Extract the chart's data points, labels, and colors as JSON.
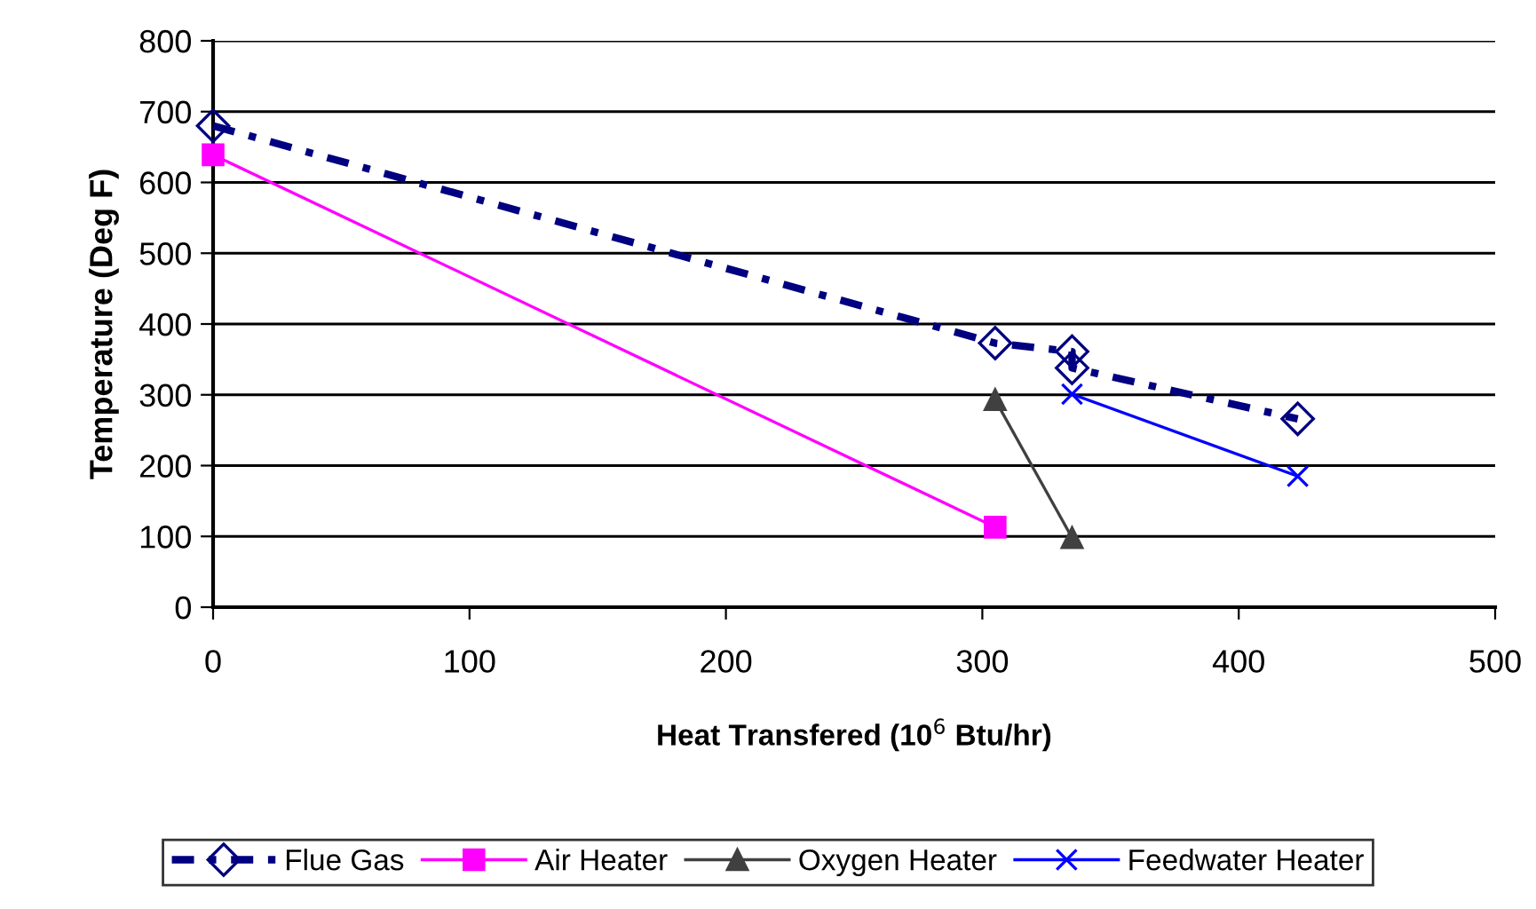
{
  "chart_data": {
    "type": "line",
    "xlabel": "Heat Transfered (10$^{6}$ Btu/hr)",
    "ylabel": "Temperature (Deg F)",
    "xlim": [
      0,
      500
    ],
    "xticks": [
      0,
      100,
      200,
      300,
      400,
      500
    ],
    "ylim": [
      0,
      800
    ],
    "yticks": [
      0,
      100,
      200,
      300,
      400,
      500,
      600,
      700,
      800
    ],
    "grid": "y",
    "legend": "bottom",
    "series": [
      {
        "name": "Flue Gas",
        "color": "#000080",
        "marker": "diamond",
        "line_style": "dashed",
        "x": [
          0,
          305,
          335,
          335,
          423
        ],
        "values": [
          680,
          373,
          361,
          338,
          266
        ]
      },
      {
        "name": "Air Heater",
        "color": "#ff00ff",
        "marker": "square",
        "line_style": "solid",
        "x": [
          0,
          305
        ],
        "values": [
          639,
          113
        ]
      },
      {
        "name": "Oxygen Heater",
        "color": "#404040",
        "marker": "triangle",
        "line_style": "solid",
        "x": [
          305,
          335
        ],
        "values": [
          293,
          98
        ]
      },
      {
        "name": "Feedwater Heater",
        "color": "#0000ff",
        "marker": "cross",
        "line_style": "solid",
        "x": [
          335,
          423
        ],
        "values": [
          301,
          185
        ]
      }
    ]
  }
}
